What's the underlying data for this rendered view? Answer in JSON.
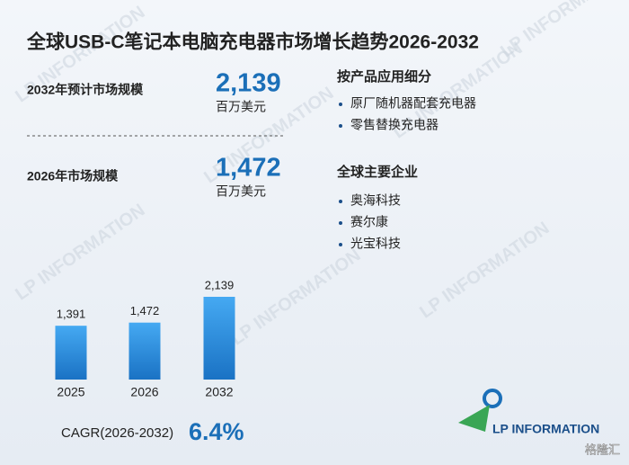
{
  "title": "全球USB-C笔记本电脑充电器市场增长趋势2026-2032",
  "stats": [
    {
      "label": "2032年预计市场规模",
      "value": "2,139",
      "unit": "百万美元"
    },
    {
      "label": "2026年市场规模",
      "value": "1,472",
      "unit": "百万美元"
    }
  ],
  "segments": {
    "title": "按产品应用细分",
    "items": [
      "原厂随机器配套充电器",
      "零售替换充电器"
    ]
  },
  "companies": {
    "title": "全球主要企业",
    "items": [
      "奥海科技",
      "赛尔康",
      "光宝科技"
    ]
  },
  "cagr": {
    "label": "CAGR(2026-2032)",
    "value": "6.4%"
  },
  "logo": "LP INFORMATION",
  "watermark": "LP INFORMATION",
  "source_badge": "格隆汇",
  "chart_data": {
    "type": "bar",
    "categories": [
      "2025",
      "2026",
      "2032"
    ],
    "values": [
      1391,
      1472,
      2139
    ],
    "value_labels": [
      "1,391",
      "1,472",
      "2,139"
    ],
    "color": "#2b8ee0"
  }
}
